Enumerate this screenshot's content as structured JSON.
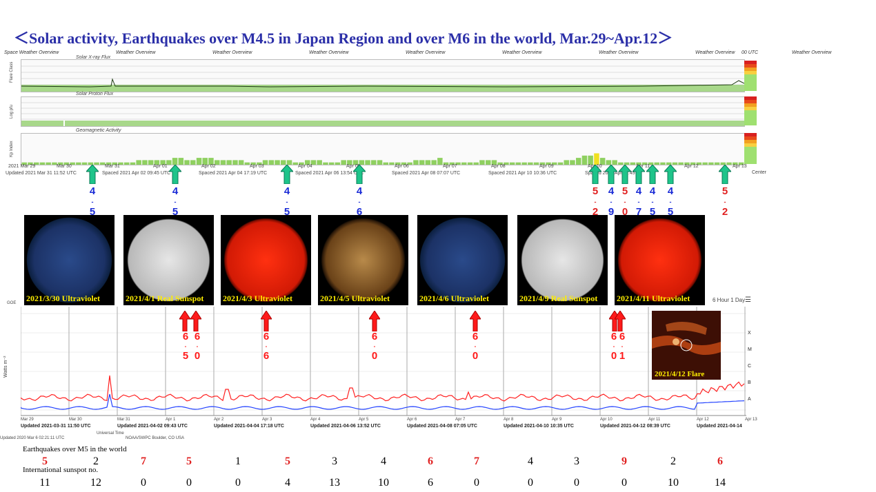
{
  "title": "＜Solar activity, Earthquakes over M4.5 in Japan Region and over M6 in the world,   Mar.29~Apr.12＞",
  "noaa_panel": {
    "left_header": "Space Weather Overview",
    "right_header": "00 UTC",
    "headers": [
      "Weather Overview",
      "Weather Overview",
      "Weather Overview",
      "Weather Overview",
      "Weather Overview",
      "Weather Overview",
      "Weather Overview",
      "Weather Overview"
    ],
    "xray_title": "Solar X-ray Flux",
    "proton_title": "Solar Proton Flux",
    "geo_title": "Geomagnetic Activity",
    "ylabel_flare": "Flare Class",
    "ylabel_proton": "Log pfu",
    "ylabel_kp": "Kp Index",
    "x_ticks": [
      "2021 Mar 29",
      "Mar 30",
      "Mar 31",
      "Apr 01",
      "Apr 02",
      "Apr 03",
      "Apr 04",
      "Apr 05",
      "Apr 06",
      "Apr 07",
      "Apr 08",
      "Apr 09",
      "Apr 10",
      "Apr 11",
      "Apr 12",
      "Apr 13"
    ],
    "universal_time": "Universal Time",
    "center": "Center",
    "updated": [
      "Updated 2021 Mar 31 11:52 UTC",
      "Spaced 2021 Apr 02 09:45 UTC",
      "Spaced 2021 Apr 04 17:19 UTC",
      "Spaced 2021 Apr 06 13:54 UTC",
      "Spaced 2021 Apr 08 07:07 UTC",
      "Spaced 2021 Apr 10 10:36 UTC",
      "Spaced 2021 Apr 11:45"
    ]
  },
  "japan_quakes": [
    {
      "top": "4",
      "bottom": "5",
      "color": "#1a2bd6"
    },
    {
      "top": "4",
      "bottom": "5",
      "color": "#1a2bd6"
    },
    {
      "top": "4",
      "bottom": "5",
      "color": "#1a2bd6"
    },
    {
      "top": "4",
      "bottom": "6",
      "color": "#1a2bd6"
    },
    {
      "top": "5",
      "bottom": "2",
      "color": "#e02020"
    },
    {
      "top": "4",
      "bottom": "9",
      "color": "#1a2bd6"
    },
    {
      "top": "5",
      "bottom": "0",
      "color": "#e02020"
    },
    {
      "top": "4",
      "bottom": "7",
      "color": "#1a2bd6"
    },
    {
      "top": "4",
      "bottom": "5",
      "color": "#1a2bd6"
    },
    {
      "top": "4",
      "bottom": "5",
      "color": "#1a2bd6"
    },
    {
      "top": "5",
      "bottom": "2",
      "color": "#e02020"
    }
  ],
  "solar_images": [
    {
      "caption": "2021/3/30 Ultraviolet",
      "kind": "uv-blue"
    },
    {
      "caption": "2021/4/1 Real Sunspot",
      "kind": "white"
    },
    {
      "caption": "2021/4/3 Ultraviolet",
      "kind": "red"
    },
    {
      "caption": "2021/4/5 Ultraviolet",
      "kind": "orange"
    },
    {
      "caption": "2021/4/6 Ultraviolet",
      "kind": "uv-blue"
    },
    {
      "caption": "2021/4/9 Real Sunspot",
      "kind": "white"
    },
    {
      "caption": "2021/4/11 Ultraviolet",
      "kind": "red"
    }
  ],
  "goes_panel": {
    "label": "GOE",
    "ylabel": "Watts m⁻²",
    "right_controls": "6 Hour  1 Day",
    "class_labels": [
      "X",
      "M",
      "C",
      "B",
      "A"
    ],
    "x_ticks": [
      "Mar 29",
      "Mar 30",
      "Mar 31",
      "Apr 1",
      "Apr 2",
      "Apr 3",
      "Apr 4",
      "Apr 5",
      "Apr 6",
      "Apr 7",
      "Apr 8",
      "Apr 9",
      "Apr 10",
      "Apr 11",
      "Apr 12",
      "Apr 13"
    ],
    "universal_time": "Universal Time",
    "updated": [
      "Updated 2021-03-31 11:50 UTC",
      "Updated 2021-04-02 09:43 UTC",
      "Updated 2021-04-04 17:18 UTC",
      "Updated 2021-04-06 13:52 UTC",
      "Updated 2021-04-08 07:05 UTC",
      "Updated 2021-04-10 10:35 UTC",
      "Updated 2021-04-12 08:39 UTC",
      "Updated 2021-04-14"
    ],
    "footer_left": "Updated 2020 Mar  6 02:21:11 UTC",
    "footer_center": "NOAA/SWPC Boulder, CO USA",
    "flare_caption": "2021/4/12 Flare"
  },
  "world_quakes": [
    {
      "top": "6",
      "bottom": "5"
    },
    {
      "top": "6",
      "bottom": "0"
    },
    {
      "top": "6",
      "bottom": "6"
    },
    {
      "top": "6",
      "bottom": "0"
    },
    {
      "top": "6",
      "bottom": "0"
    },
    {
      "top": "6",
      "bottom": "0"
    },
    {
      "top": "6",
      "bottom": "1"
    }
  ],
  "table": {
    "row1_label": "Earthquakes over M5 in the world",
    "row2_label": "International sunspot no.",
    "row1_values": [
      "5",
      "2",
      "7",
      "5",
      "1",
      "5",
      "3",
      "4",
      "6",
      "7",
      "4",
      "3",
      "9",
      "2",
      "6"
    ],
    "row1_red": [
      true,
      false,
      true,
      true,
      false,
      true,
      false,
      false,
      true,
      true,
      false,
      false,
      true,
      false,
      true
    ],
    "row2_values": [
      "11",
      "12",
      "0",
      "0",
      "0",
      "4",
      "13",
      "10",
      "6",
      "0",
      "0",
      "0",
      "0",
      "10",
      "14"
    ]
  },
  "chart_data": {
    "type": "table",
    "title": "＜Solar activity, Earthquakes over M4.5 in Japan Region and over M6 in the world,   Mar.29~Apr.12＞",
    "categories": [
      "Mar 29",
      "Mar 30",
      "Mar 31",
      "Apr 1",
      "Apr 2",
      "Apr 3",
      "Apr 4",
      "Apr 5",
      "Apr 6",
      "Apr 7",
      "Apr 8",
      "Apr 9",
      "Apr 10",
      "Apr 11",
      "Apr 12"
    ],
    "series": [
      {
        "name": "Earthquakes over M5 in the world",
        "values": [
          5,
          2,
          7,
          5,
          1,
          5,
          3,
          4,
          6,
          7,
          4,
          3,
          9,
          2,
          6
        ]
      },
      {
        "name": "International sunspot no.",
        "values": [
          11,
          12,
          0,
          0,
          0,
          4,
          13,
          10,
          6,
          0,
          0,
          0,
          0,
          10,
          14
        ]
      }
    ]
  },
  "colors": {
    "title": "#2b2fa8",
    "green_arrow": "#1ec48a",
    "red_arrow": "#ff1a1a",
    "blue": "#1a2bd6",
    "red": "#e02020"
  }
}
